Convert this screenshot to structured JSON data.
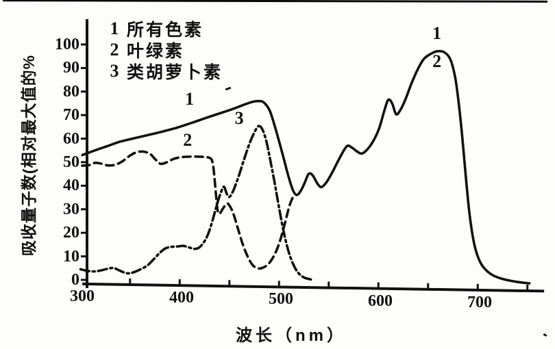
{
  "figure": {
    "legend": [
      {
        "id": "1",
        "label": "所有色素"
      },
      {
        "id": "2",
        "label": "叶绿素"
      },
      {
        "id": "3",
        "label": "类胡萝卜素"
      }
    ]
  },
  "chart_data": {
    "type": "line",
    "title": "",
    "xlabel": "波长（nm）",
    "ylabel": "吸收量子数(相对最大值的%",
    "xlim": [
      300,
      760
    ],
    "ylim": [
      0,
      105
    ],
    "grid": false,
    "x_tick_labels": [
      300,
      400,
      500,
      600,
      700
    ],
    "x_minor_ticks": [
      350,
      400,
      450,
      500,
      550,
      600,
      650,
      700,
      750
    ],
    "y_ticks": [
      0,
      10,
      20,
      30,
      40,
      50,
      60,
      70,
      80,
      90,
      100
    ],
    "ink_color": "#111111",
    "notes": "Hand-drawn scanned figure. Curve 2 (dashed) merges into curve 1 (solid) near 515 nm; the red-region peak (~660 nm, ~98%) is labeled both 1 and 2. Curve 3 (dash-dot) falls to zero near 525-530 nm.",
    "series": [
      {
        "name": "1 所有色素",
        "style": "solid",
        "points": [
          [
            300,
            51.5
          ],
          [
            312,
            53.5
          ],
          [
            325,
            55.5
          ],
          [
            338,
            57.5
          ],
          [
            352,
            59
          ],
          [
            366,
            60.5
          ],
          [
            380,
            62
          ],
          [
            395,
            63.8
          ],
          [
            410,
            66
          ],
          [
            425,
            68.3
          ],
          [
            440,
            70.5
          ],
          [
            452,
            72.3
          ],
          [
            462,
            74
          ],
          [
            470,
            75.2
          ],
          [
            477,
            75.6
          ],
          [
            482,
            75
          ],
          [
            488,
            71.5
          ],
          [
            494,
            64
          ],
          [
            501,
            54
          ],
          [
            507,
            45
          ],
          [
            512,
            38.5
          ],
          [
            516,
            36
          ],
          [
            520,
            37.5
          ],
          [
            524,
            41
          ],
          [
            528,
            45
          ],
          [
            532,
            44.5
          ],
          [
            537,
            41
          ],
          [
            541,
            39.5
          ],
          [
            546,
            41.5
          ],
          [
            552,
            46
          ],
          [
            559,
            52
          ],
          [
            566,
            57
          ],
          [
            571,
            56.5
          ],
          [
            576,
            55
          ],
          [
            581,
            54
          ],
          [
            586,
            55.5
          ],
          [
            592,
            59
          ],
          [
            598,
            64.5
          ],
          [
            603,
            72
          ],
          [
            607,
            77
          ],
          [
            611,
            75.5
          ],
          [
            615,
            71
          ],
          [
            619,
            72.5
          ],
          [
            624,
            77
          ],
          [
            630,
            84
          ],
          [
            636,
            90
          ],
          [
            642,
            94.5
          ],
          [
            649,
            96.8
          ],
          [
            656,
            98
          ],
          [
            663,
            97.5
          ],
          [
            669,
            94.5
          ],
          [
            674,
            87
          ],
          [
            678,
            76
          ],
          [
            682,
            62
          ],
          [
            686,
            46
          ],
          [
            690,
            31
          ],
          [
            694,
            20
          ],
          [
            698,
            13
          ],
          [
            703,
            8
          ],
          [
            709,
            5
          ],
          [
            716,
            3
          ],
          [
            724,
            1.8
          ],
          [
            733,
            1
          ],
          [
            742,
            0.4
          ],
          [
            752,
            0
          ]
        ]
      },
      {
        "name": "2 叶绿素",
        "style": "dashed",
        "points": [
          [
            300,
            47
          ],
          [
            307,
            47.3
          ],
          [
            313,
            48.3
          ],
          [
            319,
            48
          ],
          [
            326,
            47.3
          ],
          [
            333,
            47.6
          ],
          [
            340,
            49
          ],
          [
            347,
            51.3
          ],
          [
            354,
            53
          ],
          [
            361,
            53.4
          ],
          [
            368,
            52.5
          ],
          [
            374,
            50
          ],
          [
            379,
            48.3
          ],
          [
            385,
            49
          ],
          [
            392,
            50.5
          ],
          [
            400,
            51.3
          ],
          [
            410,
            51.6
          ],
          [
            420,
            51.6
          ],
          [
            428,
            51.2
          ],
          [
            431,
            49.5
          ],
          [
            433,
            44
          ],
          [
            435,
            36
          ],
          [
            437,
            29
          ],
          [
            439,
            27.5
          ],
          [
            442,
            29.5
          ],
          [
            446,
            31.8
          ],
          [
            449,
            31
          ],
          [
            453,
            27.5
          ],
          [
            458,
            21
          ],
          [
            463,
            14.5
          ],
          [
            468,
            9.5
          ],
          [
            473,
            6
          ],
          [
            478,
            4.6
          ],
          [
            483,
            4.8
          ],
          [
            489,
            6.5
          ],
          [
            495,
            10.5
          ],
          [
            500,
            16
          ],
          [
            505,
            24
          ],
          [
            509,
            31
          ],
          [
            512,
            34.5
          ],
          [
            514,
            36
          ]
        ]
      },
      {
        "name": "3 类胡萝卜素",
        "style": "dash-dot",
        "points": [
          [
            300,
            3
          ],
          [
            308,
            2.3
          ],
          [
            315,
            2.2
          ],
          [
            322,
            2.8
          ],
          [
            329,
            3.6
          ],
          [
            334,
            3.7
          ],
          [
            340,
            2.6
          ],
          [
            347,
            1.6
          ],
          [
            353,
            2
          ],
          [
            360,
            3.3
          ],
          [
            367,
            5
          ],
          [
            373,
            7.5
          ],
          [
            379,
            10.3
          ],
          [
            385,
            12.4
          ],
          [
            391,
            13.1
          ],
          [
            397,
            13.3
          ],
          [
            403,
            13.6
          ],
          [
            409,
            13
          ],
          [
            414,
            12.4
          ],
          [
            419,
            13
          ],
          [
            424,
            15.5
          ],
          [
            428,
            19
          ],
          [
            432,
            24.5
          ],
          [
            436,
            31
          ],
          [
            440,
            36.5
          ],
          [
            443,
            39
          ],
          [
            446,
            36
          ],
          [
            449,
            34.8
          ],
          [
            453,
            38
          ],
          [
            458,
            44
          ],
          [
            463,
            51
          ],
          [
            468,
            57.5
          ],
          [
            473,
            62.5
          ],
          [
            477,
            65
          ],
          [
            481,
            63.5
          ],
          [
            485,
            58.5
          ],
          [
            489,
            51
          ],
          [
            494,
            41
          ],
          [
            499,
            30
          ],
          [
            504,
            20
          ],
          [
            509,
            12
          ],
          [
            514,
            6.5
          ],
          [
            519,
            3
          ],
          [
            525,
            1
          ],
          [
            532,
            0.2
          ]
        ]
      }
    ],
    "curve_labels": [
      {
        "text": "1",
        "x": 408,
        "y": 76
      },
      {
        "text": "2",
        "x": 406,
        "y": 58.5
      },
      {
        "text": "3",
        "x": 458,
        "y": 68
      },
      {
        "text": "1",
        "x": 657,
        "y": 105.5
      },
      {
        "text": "2",
        "x": 657,
        "y": 93.5
      }
    ]
  }
}
